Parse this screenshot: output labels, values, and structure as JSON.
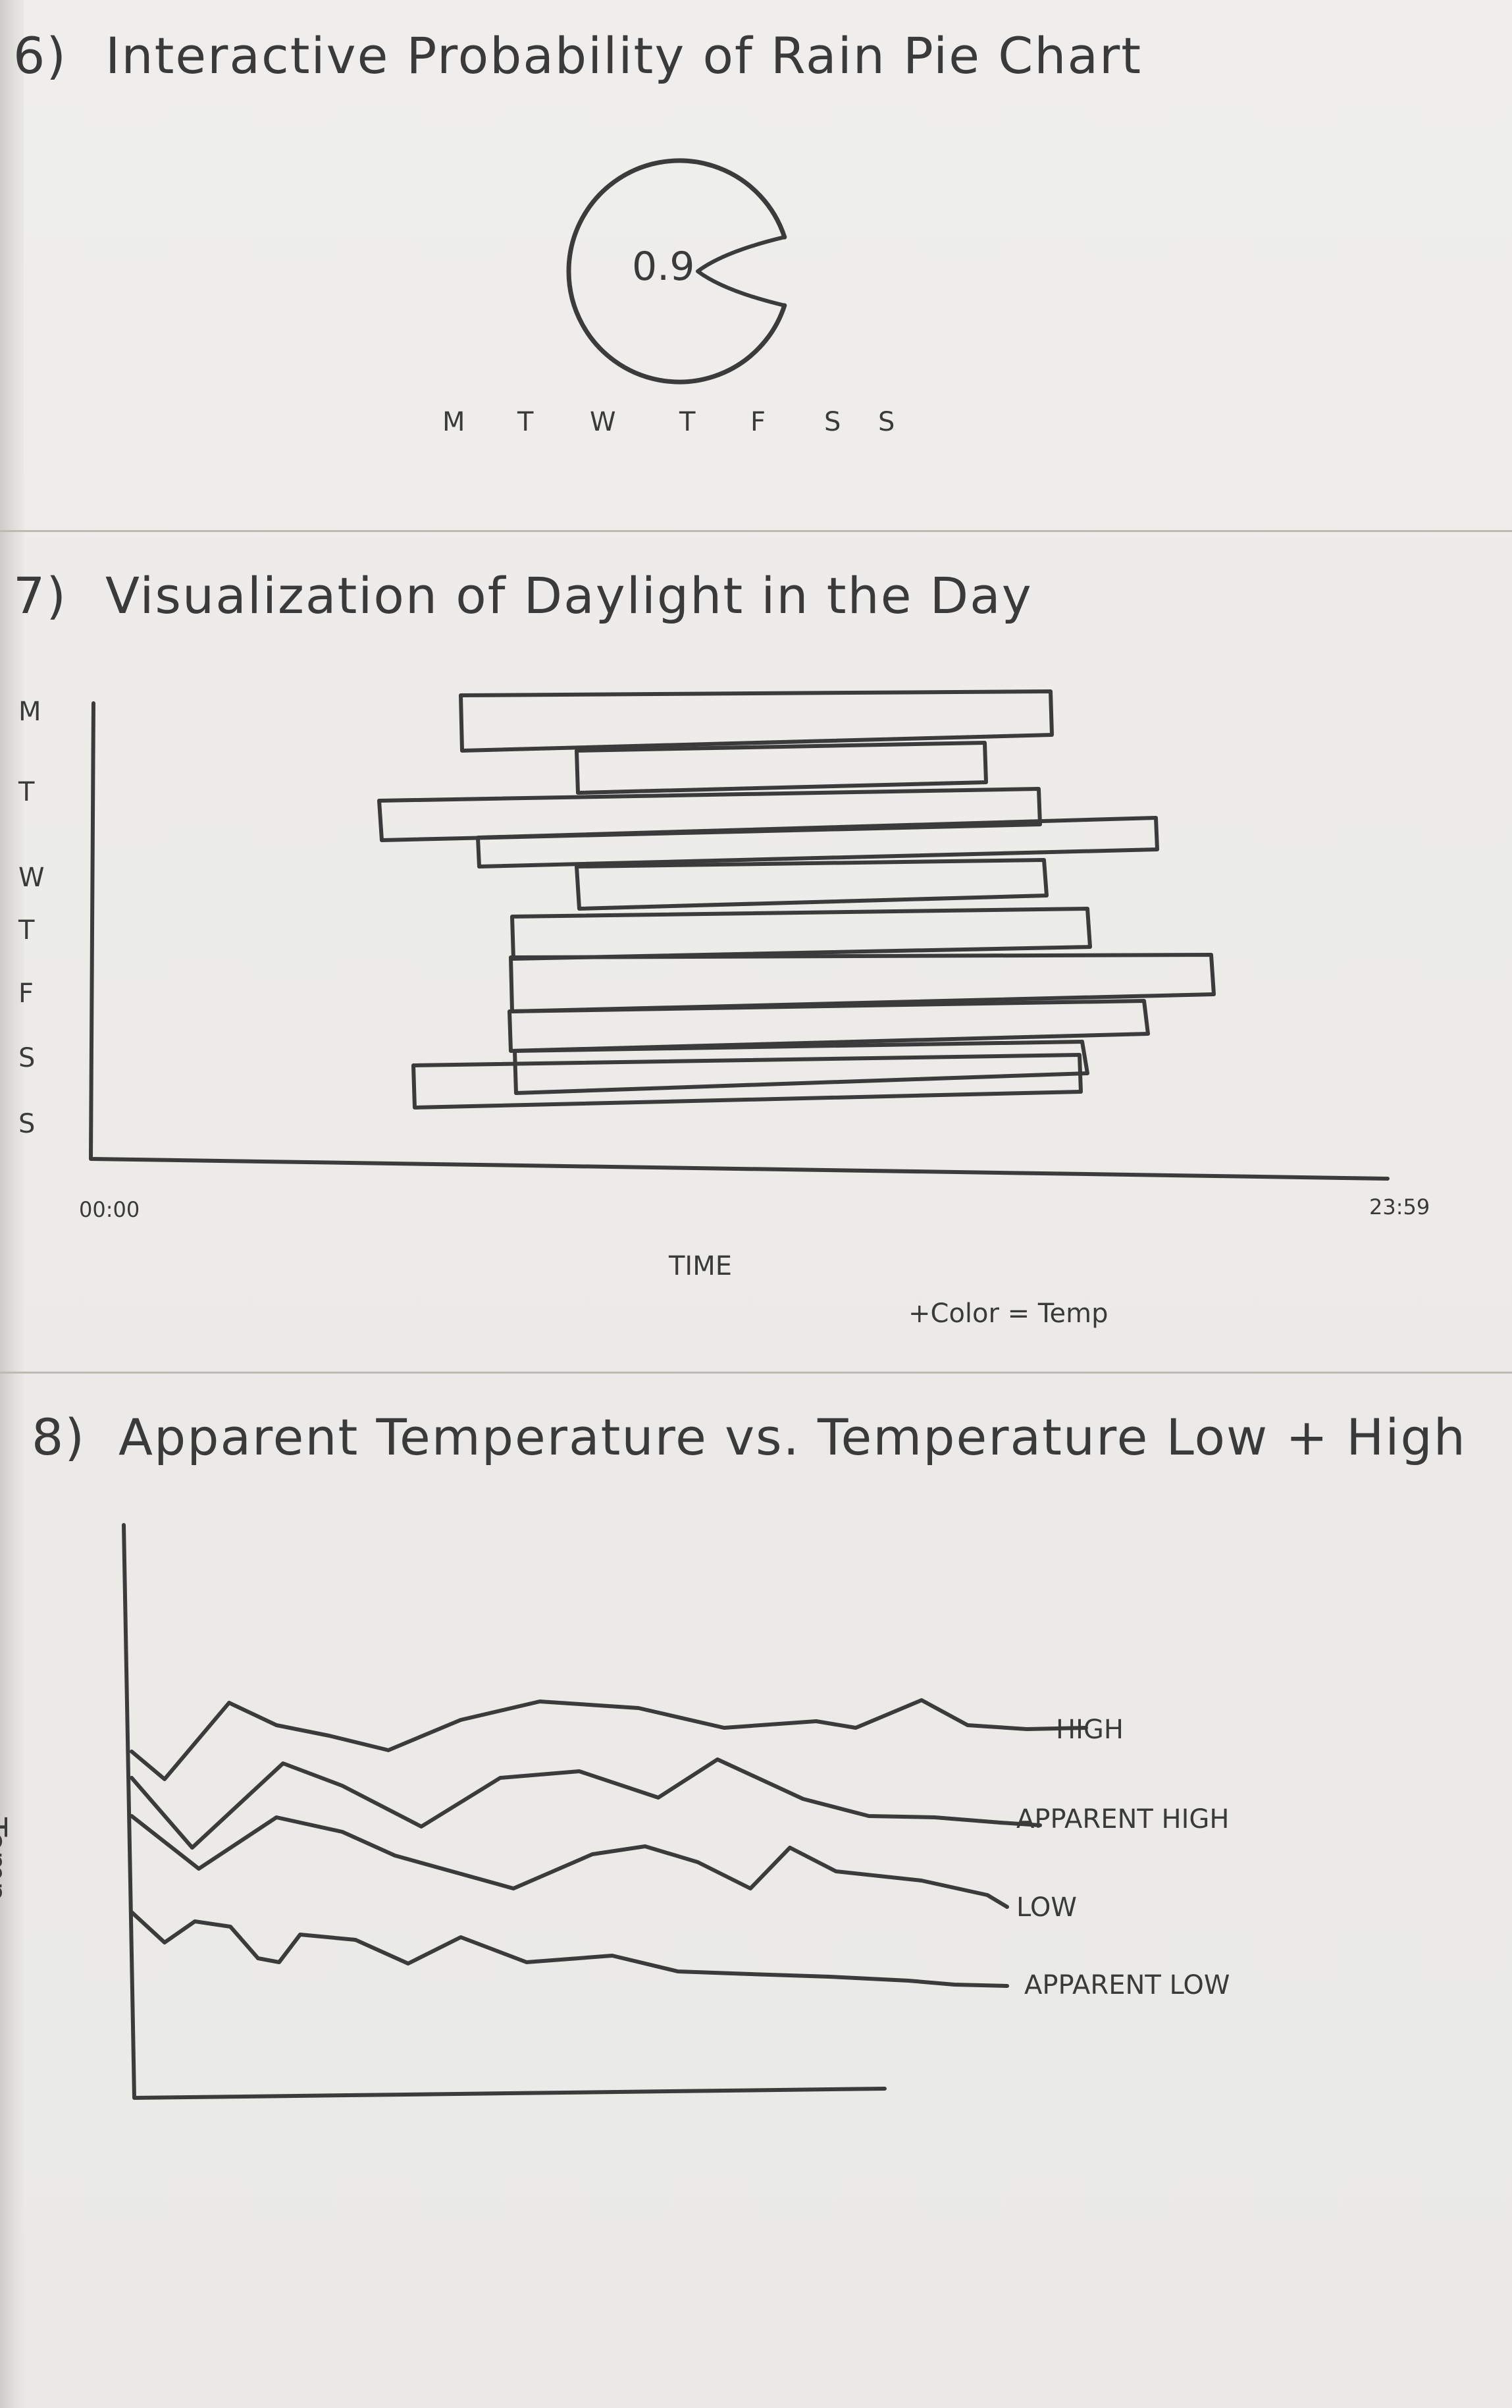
{
  "sections": [
    {
      "number": "6)",
      "title": "Interactive Probability of Rain Pie Chart",
      "pie_value": "0.9",
      "pie_fraction": 0.9,
      "days": [
        "M",
        "T",
        "W",
        "T",
        "F",
        "S",
        "S"
      ]
    },
    {
      "number": "7)",
      "title": "Visualization of Daylight in the Day",
      "days": [
        "M",
        "T",
        "W",
        "T",
        "F",
        "S",
        "S"
      ],
      "x_start": "00:00",
      "x_end": "23:59",
      "x_axis_label": "TIME",
      "note": "+Color = Temp"
    },
    {
      "number": "8)",
      "title": "Apparent Temperature vs. Temperature Low + High",
      "y_axis_label": "Temp",
      "line_labels": [
        "HIGH",
        "APPARENT HIGH",
        "LOW",
        "APPARENT LOW"
      ]
    }
  ],
  "colors": {
    "pencil": "#3b3b3b",
    "paper": "#edece9"
  }
}
